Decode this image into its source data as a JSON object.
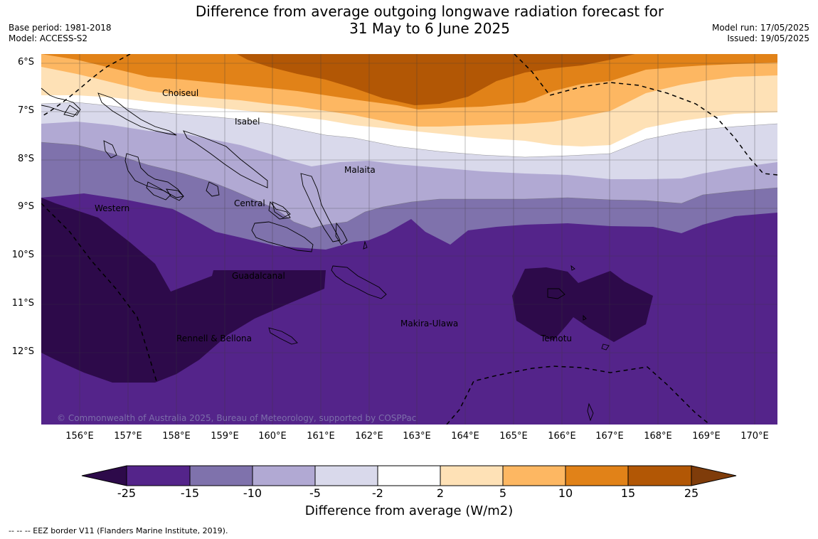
{
  "title": {
    "line1": "Difference from average outgoing longwave radiation forecast for",
    "line2": "31 May to 6 June 2025"
  },
  "meta": {
    "base_period": "Base period: 1981-2018",
    "model": "Model: ACCESS-S2",
    "model_run": "Model run: 17/05/2025",
    "issued": "Issued: 19/05/2025"
  },
  "axes": {
    "lat_labels": [
      "6°S",
      "7°S",
      "8°S",
      "9°S",
      "10°S",
      "11°S",
      "12°S"
    ],
    "lon_labels": [
      "156°E",
      "157°E",
      "158°E",
      "159°E",
      "160°E",
      "161°E",
      "162°E",
      "163°E",
      "164°E",
      "165°E",
      "166°E",
      "167°E",
      "168°E",
      "169°E",
      "170°E"
    ]
  },
  "map": {
    "regions": [
      "Choiseul",
      "Isabel",
      "Malaita",
      "Western",
      "Central",
      "Guadalcanal",
      "Makira-Ulawa",
      "Rennell & Bellona",
      "Temotu"
    ],
    "copyright": "© Commonwealth of Australia 2025, Bureau of Meteorology, supported by COSPPac"
  },
  "colorbar": {
    "ticks": [
      "-25",
      "-15",
      "-10",
      "-5",
      "-2",
      "2",
      "5",
      "10",
      "15",
      "25"
    ],
    "colors": [
      "#2d0a4a",
      "#54248a",
      "#7f72ac",
      "#b1a9d3",
      "#d9d9eb",
      "#ffffff",
      "#fee1b6",
      "#fdb762",
      "#e18218",
      "#b25705",
      "#7f3c0a"
    ],
    "label": "Difference from average (W/m2)"
  },
  "footnote": "--  --  -- EEZ border V11 (Flanders Marine Institute, 2019)."
}
